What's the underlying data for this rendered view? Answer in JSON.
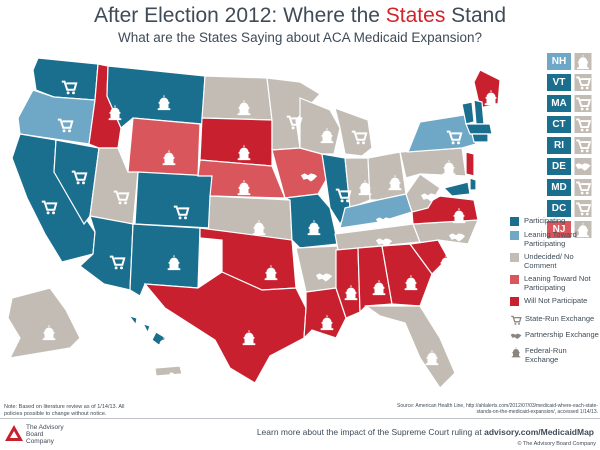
{
  "header": {
    "title_pre": "After Election 2012: Where the ",
    "title_hl": "States",
    "title_post": " Stand",
    "subtitle": "What are the States Saying about ACA Medicaid Expansion?"
  },
  "colors": {
    "participating": "#1a6e8e",
    "leaning_participating": "#6ea8c6",
    "undecided": "#c2bcb5",
    "leaning_not": "#d9575c",
    "not_participating": "#c8202f"
  },
  "small_states": [
    {
      "code": "NH",
      "status": "leaning_participating",
      "icon": "capitol"
    },
    {
      "code": "VT",
      "status": "participating",
      "icon": "cart"
    },
    {
      "code": "MA",
      "status": "participating",
      "icon": "cart"
    },
    {
      "code": "CT",
      "status": "participating",
      "icon": "cart"
    },
    {
      "code": "RI",
      "status": "participating",
      "icon": "cart"
    },
    {
      "code": "DE",
      "status": "participating",
      "icon": "handshake"
    },
    {
      "code": "MD",
      "status": "participating",
      "icon": "cart"
    },
    {
      "code": "DC",
      "status": "participating",
      "icon": "cart"
    },
    {
      "code": "NJ",
      "status": "leaning_not",
      "icon": "capitol"
    }
  ],
  "legend": {
    "participating": "Participating",
    "leaning_participating": "Leaning Toward Participating",
    "undecided": "Undecided/ No Comment",
    "leaning_not": "Leaning Toward Not Participating",
    "not_participating": "Will Not Participate",
    "state_run": "State-Run Exchange",
    "partnership": "Partnership Exchange",
    "federal_run": "Federal-Run Exchange"
  },
  "note": "Note: Based on literature review as of 1/14/13. All policies possible to change without notice.",
  "source": "Source: American Health Line, http://ahlalerts.com/2012/07/03/medicaid-where-each-state-stands-on-the-medicaid-expansion/, accessed 1/14/13.",
  "footer": {
    "learn_pre": "Learn more about the impact of the Supreme Court ruling at ",
    "learn_link": "advisory.com/MedicaidMap",
    "copyright": "© The Advisory Board Company",
    "logo_line1": "The",
    "logo_line2": "Advisory",
    "logo_line3": "Board",
    "logo_line4": "Company"
  }
}
